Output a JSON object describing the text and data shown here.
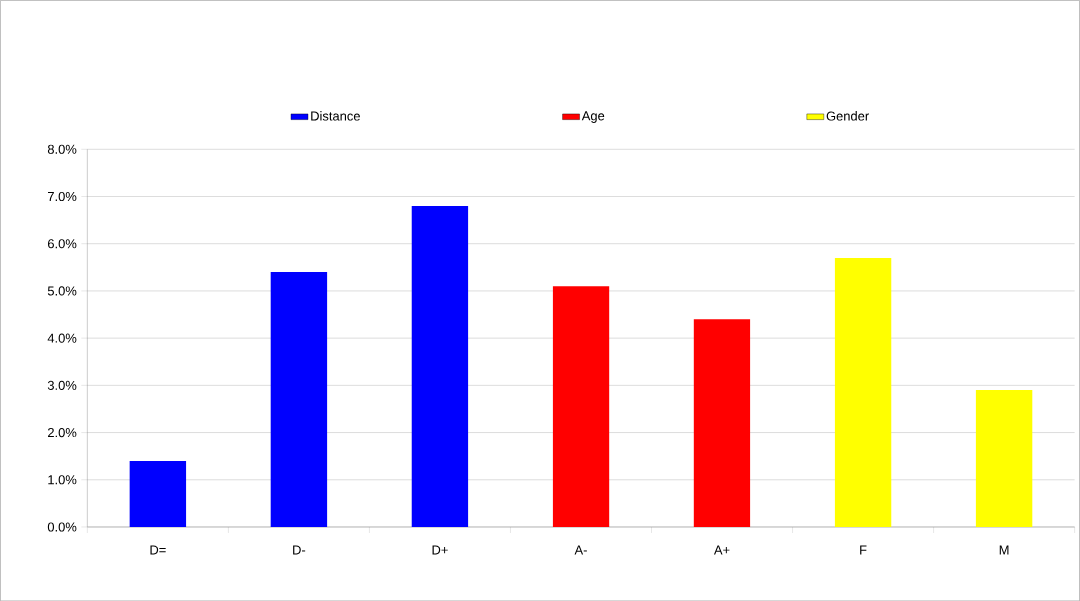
{
  "chart_data": {
    "type": "bar",
    "categories": [
      "D=",
      "D-",
      "D+",
      "A-",
      "A+",
      "F",
      "M"
    ],
    "series": [
      {
        "name": "Distance",
        "color": "#0000ff",
        "values": [
          1.4,
          5.4,
          6.8,
          null,
          null,
          null,
          null
        ]
      },
      {
        "name": "Age",
        "color": "#ff0000",
        "values": [
          null,
          null,
          null,
          5.1,
          4.4,
          null,
          null
        ]
      },
      {
        "name": "Gender",
        "color": "#ffff00",
        "values": [
          null,
          null,
          null,
          null,
          null,
          5.7,
          2.9
        ]
      }
    ],
    "ylim": [
      0,
      8
    ],
    "yticks": [
      {
        "value": 0,
        "label": "0.0%"
      },
      {
        "value": 1,
        "label": "1.0%"
      },
      {
        "value": 2,
        "label": "2.0%"
      },
      {
        "value": 3,
        "label": "3.0%"
      },
      {
        "value": 4,
        "label": "4.0%"
      },
      {
        "value": 5,
        "label": "5.0%"
      },
      {
        "value": 6,
        "label": "6.0%"
      },
      {
        "value": 7,
        "label": "7.0%"
      },
      {
        "value": 8,
        "label": "8.0%"
      }
    ],
    "grid": "y",
    "legend": "top"
  }
}
